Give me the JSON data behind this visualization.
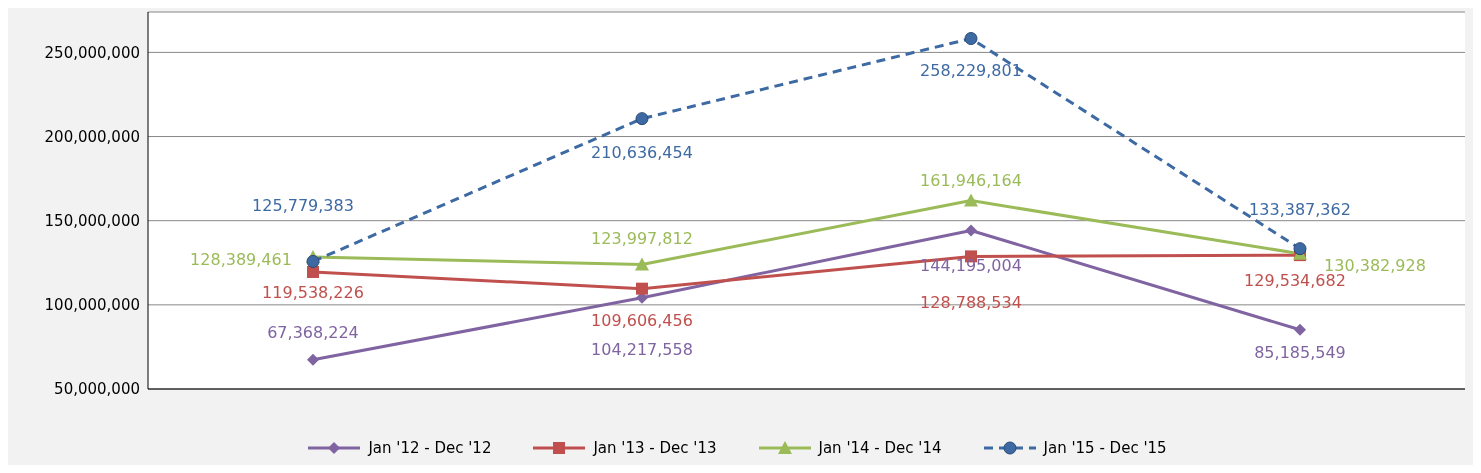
{
  "chart_data": {
    "type": "line",
    "categories": [
      null,
      null,
      null,
      null
    ],
    "series": [
      {
        "name": "Jan '12 - Dec '12",
        "color": "#8064a2",
        "marker": "diamond",
        "line_style": "solid",
        "values": [
          67368224,
          104217558,
          144195004,
          85185549
        ],
        "value_labels": [
          "67,368,224",
          "104,217,558",
          "144,195,004",
          "85,185,549"
        ]
      },
      {
        "name": "Jan '13 - Dec '13",
        "color": "#c0504d",
        "marker": "square",
        "line_style": "solid",
        "values": [
          119538226,
          109606456,
          128788534,
          129534682
        ],
        "value_labels": [
          "119,538,226",
          "109,606,456",
          "128,788,534",
          "129,534,682"
        ]
      },
      {
        "name": "Jan '14 - Dec '14",
        "color": "#9bbb59",
        "marker": "triangle",
        "line_style": "solid",
        "values": [
          128389461,
          123997812,
          161946164,
          130382928
        ],
        "value_labels": [
          "128,389,461",
          "123,997,812",
          "161,946,164",
          "130,382,928"
        ]
      },
      {
        "name": "Jan '15 - Dec '15",
        "color": "#3d6aa3",
        "marker": "circle",
        "line_style": "dashed",
        "values": [
          125779383,
          210636454,
          258229801,
          133387362
        ],
        "value_labels": [
          "125,779,383",
          "210,636,454",
          "258,229,801",
          "133,387,362"
        ]
      }
    ],
    "ylim": [
      50000000,
      274000000
    ],
    "yticks": [
      {
        "value": 50000000,
        "label": "50,000,000"
      },
      {
        "value": 100000000,
        "label": "100,000,000"
      },
      {
        "value": 150000000,
        "label": "150,000,000"
      },
      {
        "value": 200000000,
        "label": "200,000,000"
      },
      {
        "value": 250000000,
        "label": "250,000,000"
      }
    ],
    "grid": "y",
    "legend": "bottom"
  }
}
